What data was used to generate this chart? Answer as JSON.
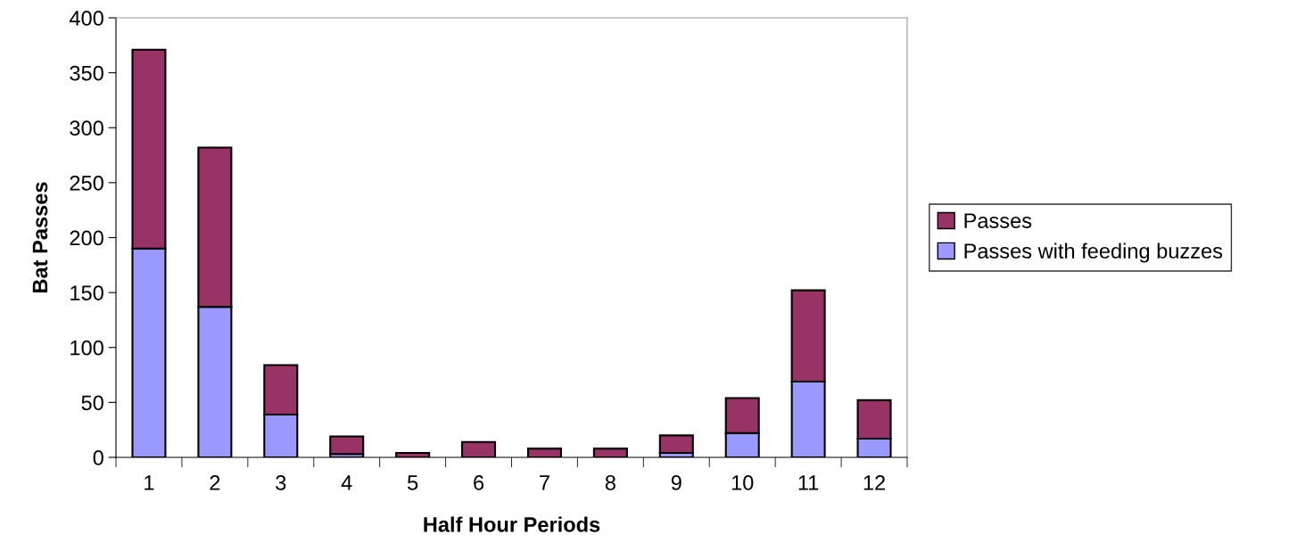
{
  "chart_data": {
    "type": "bar",
    "stacked": true,
    "xlabel": "Half Hour Periods",
    "ylabel": "Bat Passes",
    "categories": [
      "1",
      "2",
      "3",
      "4",
      "5",
      "6",
      "7",
      "8",
      "9",
      "10",
      "11",
      "12"
    ],
    "series": [
      {
        "name": "Passes with feeding buzzes",
        "color": "#9999ff",
        "values": [
          190,
          137,
          39,
          3,
          null,
          null,
          null,
          0,
          4,
          22,
          69,
          17
        ]
      },
      {
        "name": "Passes",
        "color": "#993366",
        "values": [
          181,
          145,
          45,
          16,
          4,
          14,
          8,
          8,
          16,
          32,
          83,
          35
        ]
      }
    ],
    "ylim": [
      0,
      400
    ],
    "yticks": [
      0,
      50,
      100,
      150,
      200,
      250,
      300,
      350,
      400
    ],
    "grid": false,
    "legend": "right"
  }
}
